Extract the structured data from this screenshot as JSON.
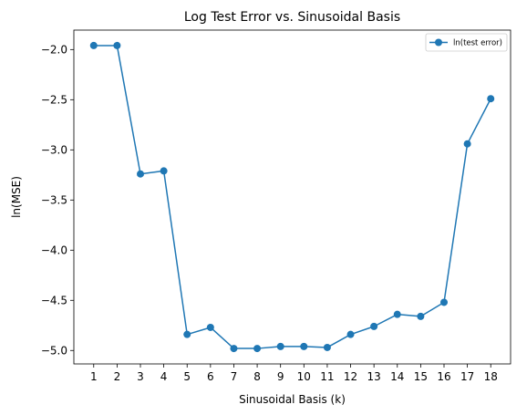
{
  "chart_data": {
    "type": "line",
    "title": "Log Test Error vs. Sinusoidal Basis",
    "xlabel": "Sinusoidal Basis (k)",
    "ylabel": "ln(MSE)",
    "x": [
      1,
      2,
      3,
      4,
      5,
      6,
      7,
      8,
      9,
      10,
      11,
      12,
      13,
      14,
      15,
      16,
      17,
      18
    ],
    "series": [
      {
        "name": "ln(test error)",
        "values": [
          -1.96,
          -1.96,
          -3.24,
          -3.21,
          -4.84,
          -4.77,
          -4.98,
          -4.98,
          -4.96,
          -4.96,
          -4.97,
          -4.84,
          -4.76,
          -4.64,
          -4.66,
          -4.52,
          -2.94,
          -2.49
        ],
        "color": "#1f77b4"
      }
    ],
    "xticks": [
      "1",
      "2",
      "3",
      "4",
      "5",
      "6",
      "7",
      "8",
      "9",
      "10",
      "11",
      "12",
      "13",
      "14",
      "15",
      "16",
      "17",
      "18"
    ],
    "yticks": [
      "−2.0",
      "−2.5",
      "−3.0",
      "−3.5",
      "−4.0",
      "−4.5",
      "−5.0"
    ],
    "ytick_values": [
      -2.0,
      -2.5,
      -3.0,
      -3.5,
      -4.0,
      -4.5,
      -5.0
    ],
    "xlim": [
      0.15,
      18.85
    ],
    "ylim": [
      -5.134,
      -1.806
    ],
    "grid": false,
    "legend_position": "top-right"
  }
}
